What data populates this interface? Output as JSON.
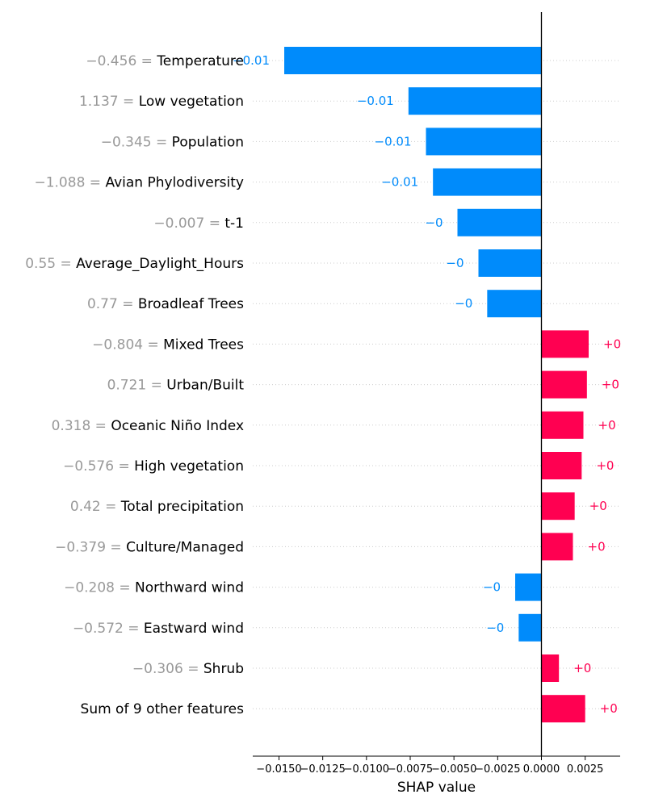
{
  "chart_data": {
    "type": "bar",
    "orientation": "horizontal",
    "xlabel": "SHAP value",
    "xlim": [
      -0.0165,
      0.0045
    ],
    "xticks": [
      -0.015,
      -0.0125,
      -0.01,
      -0.0075,
      -0.005,
      -0.0025,
      0.0,
      0.0025
    ],
    "xtick_labels": [
      "−0.0150",
      "−0.0125",
      "−0.0100",
      "−0.0075",
      "−0.0050",
      "−0.0025",
      "0.0000",
      "0.0025"
    ],
    "grid": "horizontal dotted lines per row",
    "colors": {
      "positive": "#ff0051",
      "negative": "#008bfb",
      "value_text": "#999999"
    },
    "rows": [
      {
        "value_text": "−0.456 =",
        "feature": "Temperature",
        "shap": -0.0147,
        "label": "−0.01"
      },
      {
        "value_text": "1.137 =",
        "feature": "Low vegetation",
        "shap": -0.0076,
        "label": "−0.01"
      },
      {
        "value_text": "−0.345 =",
        "feature": "Population",
        "shap": -0.0066,
        "label": "−0.01"
      },
      {
        "value_text": "−1.088 =",
        "feature": "Avian Phylodiversity",
        "shap": -0.0062,
        "label": "−0.01"
      },
      {
        "value_text": "−0.007 =",
        "feature": "t-1",
        "shap": -0.0048,
        "label": "−0"
      },
      {
        "value_text": "0.55 =",
        "feature": "Average_Daylight_Hours",
        "shap": -0.0036,
        "label": "−0"
      },
      {
        "value_text": "0.77 =",
        "feature": "Broadleaf Trees",
        "shap": -0.0031,
        "label": "−0"
      },
      {
        "value_text": "−0.804 =",
        "feature": "Mixed Trees",
        "shap": 0.0027,
        "label": "+0"
      },
      {
        "value_text": "0.721 =",
        "feature": "Urban/Built",
        "shap": 0.0026,
        "label": "+0"
      },
      {
        "value_text": "0.318 =",
        "feature": "Oceanic Niño Index",
        "shap": 0.0024,
        "label": "+0"
      },
      {
        "value_text": "−0.576 =",
        "feature": "High vegetation",
        "shap": 0.0023,
        "label": "+0"
      },
      {
        "value_text": "0.42 =",
        "feature": "Total precipitation",
        "shap": 0.0019,
        "label": "+0"
      },
      {
        "value_text": "−0.379 =",
        "feature": "Culture/Managed",
        "shap": 0.0018,
        "label": "+0"
      },
      {
        "value_text": "−0.208 =",
        "feature": "Northward wind",
        "shap": -0.0015,
        "label": "−0"
      },
      {
        "value_text": "−0.572 =",
        "feature": "Eastward wind",
        "shap": -0.0013,
        "label": "−0"
      },
      {
        "value_text": "−0.306 =",
        "feature": "Shrub",
        "shap": 0.001,
        "label": "+0"
      },
      {
        "value_text": "",
        "feature": "Sum of 9 other features",
        "shap": 0.0025,
        "label": "+0"
      }
    ]
  }
}
